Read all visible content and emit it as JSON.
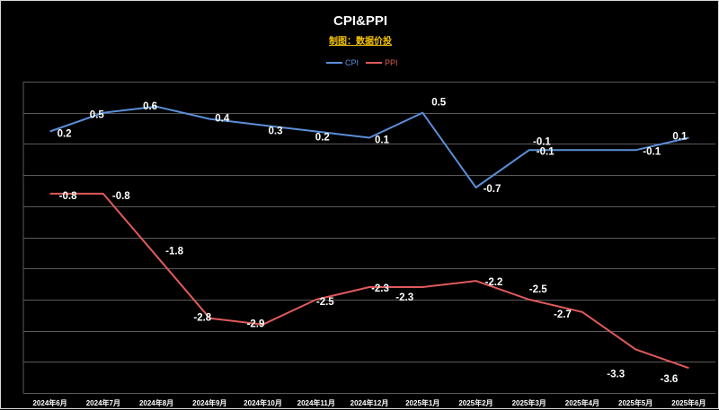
{
  "chart_data": {
    "type": "line",
    "title": "CPI&PPI",
    "subtitle": "制图：数据价投",
    "categories": [
      "2024年6月",
      "2024年7月",
      "2024年8月",
      "2024年9月",
      "2024年10月",
      "2024年11月",
      "2024年12月",
      "2025年1月",
      "2025年2月",
      "2025年3月",
      "2025年4月",
      "2025年5月",
      "2025年6月"
    ],
    "series": [
      {
        "name": "CPI",
        "color": "#5b8fd9",
        "values": [
          0.2,
          0.5,
          0.6,
          0.4,
          0.3,
          0.2,
          0.1,
          0.5,
          -0.7,
          -0.1,
          -0.1,
          -0.1,
          0.1
        ]
      },
      {
        "name": "PPI",
        "color": "#e05a5a",
        "values": [
          -0.8,
          -0.8,
          -1.8,
          -2.8,
          -2.9,
          -2.5,
          -2.3,
          -2.3,
          -2.2,
          -2.5,
          -2.7,
          -3.3,
          -3.6
        ]
      }
    ],
    "data_labels": [
      [
        "0.2",
        "0.5",
        "0.6",
        "0.4",
        "0.3",
        "0.2",
        "0.1",
        "0.5",
        "-0.7",
        "-0.1",
        "-0.1",
        "-0.1",
        "0.1"
      ],
      [
        "-0.8",
        "-0.8",
        "-1.8",
        "-2.8",
        "-2.9",
        "-2.5",
        "-2.3",
        "-2.3",
        "-2.2",
        "-2.5",
        "-2.7",
        "-3.3",
        "-3.6"
      ]
    ],
    "ylim": [
      -4,
      1
    ],
    "grid_step": 0.5,
    "grid": true,
    "legend": "top-center",
    "xlabel": "",
    "ylabel": ""
  }
}
